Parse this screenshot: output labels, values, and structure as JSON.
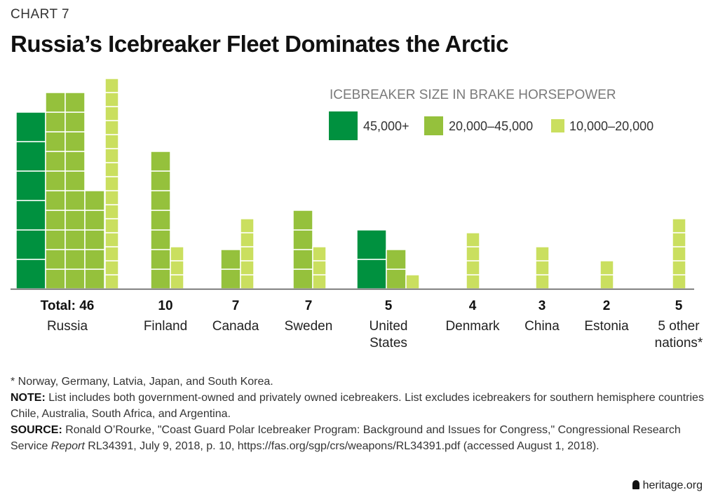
{
  "header": {
    "chart_label": "CHART 7",
    "title": "Russia’s Icebreaker Fleet Dominates the Arctic"
  },
  "chart_data": {
    "type": "bar",
    "title": "Russia’s Icebreaker Fleet Dominates the Arctic",
    "legend_title": "ICEBREAKER SIZE IN BRAKE HORSEPOWER",
    "legend_placement": "top-right",
    "series": [
      {
        "name": "45,000+",
        "color": "#00913f"
      },
      {
        "name": "20,000–45,000",
        "color": "#95c13c"
      },
      {
        "name": "10,000–20,000",
        "color": "#cadf5f"
      }
    ],
    "categories": [
      {
        "name": "Russia",
        "total_label": "Total: 46",
        "counts": [
          6,
          25,
          15
        ],
        "stacks": [
          [
            0,
            6
          ],
          [
            1,
            10
          ],
          [
            1,
            10
          ],
          [
            1,
            5
          ],
          [
            2,
            15
          ]
        ]
      },
      {
        "name": "Finland",
        "total_label": "10",
        "counts": [
          0,
          7,
          3
        ],
        "stacks": [
          [
            1,
            7
          ],
          [
            2,
            3
          ]
        ]
      },
      {
        "name": "Canada",
        "total_label": "7",
        "counts": [
          0,
          2,
          5
        ],
        "stacks": [
          [
            1,
            2
          ],
          [
            2,
            5
          ]
        ]
      },
      {
        "name": "Sweden",
        "total_label": "7",
        "counts": [
          0,
          4,
          3
        ],
        "stacks": [
          [
            1,
            4
          ],
          [
            2,
            3
          ]
        ]
      },
      {
        "name": "United States",
        "total_label": "5",
        "counts": [
          2,
          2,
          1
        ],
        "stacks": [
          [
            0,
            2
          ],
          [
            1,
            2
          ],
          [
            2,
            1
          ]
        ]
      },
      {
        "name": "Denmark",
        "total_label": "4",
        "counts": [
          0,
          0,
          4
        ],
        "stacks": [
          [
            2,
            4
          ]
        ]
      },
      {
        "name": "China",
        "total_label": "3",
        "counts": [
          0,
          0,
          3
        ],
        "stacks": [
          [
            2,
            3
          ]
        ]
      },
      {
        "name": "Estonia",
        "total_label": "2",
        "counts": [
          0,
          0,
          2
        ],
        "stacks": [
          [
            2,
            2
          ]
        ]
      },
      {
        "name": "5 other nations*",
        "total_label": "5",
        "counts": [
          0,
          0,
          5
        ],
        "stacks": [
          [
            2,
            5
          ]
        ]
      }
    ]
  },
  "notes": {
    "footnote": "* Norway, Germany, Latvia, Japan, and South Korea.",
    "note_label": "NOTE:",
    "note_text": " List includes both government-owned and privately owned icebreakers. List excludes icebreakers for southern hemisphere countries Chile, Australia, South Africa, and Argentina.",
    "source_label": "SOURCE:",
    "source_text_1": " Ronald O’Rourke, \"Coast Guard Polar Icebreaker Program: Background and Issues for Congress,\" Congressional Research Service ",
    "source_italic": "Report",
    "source_text_2": " RL34391, July 9, 2018, p. 10, https://fas.org/sgp/crs/weapons/RL34391.pdf (accessed August 1, 2018)."
  },
  "brand": "heritage.org"
}
